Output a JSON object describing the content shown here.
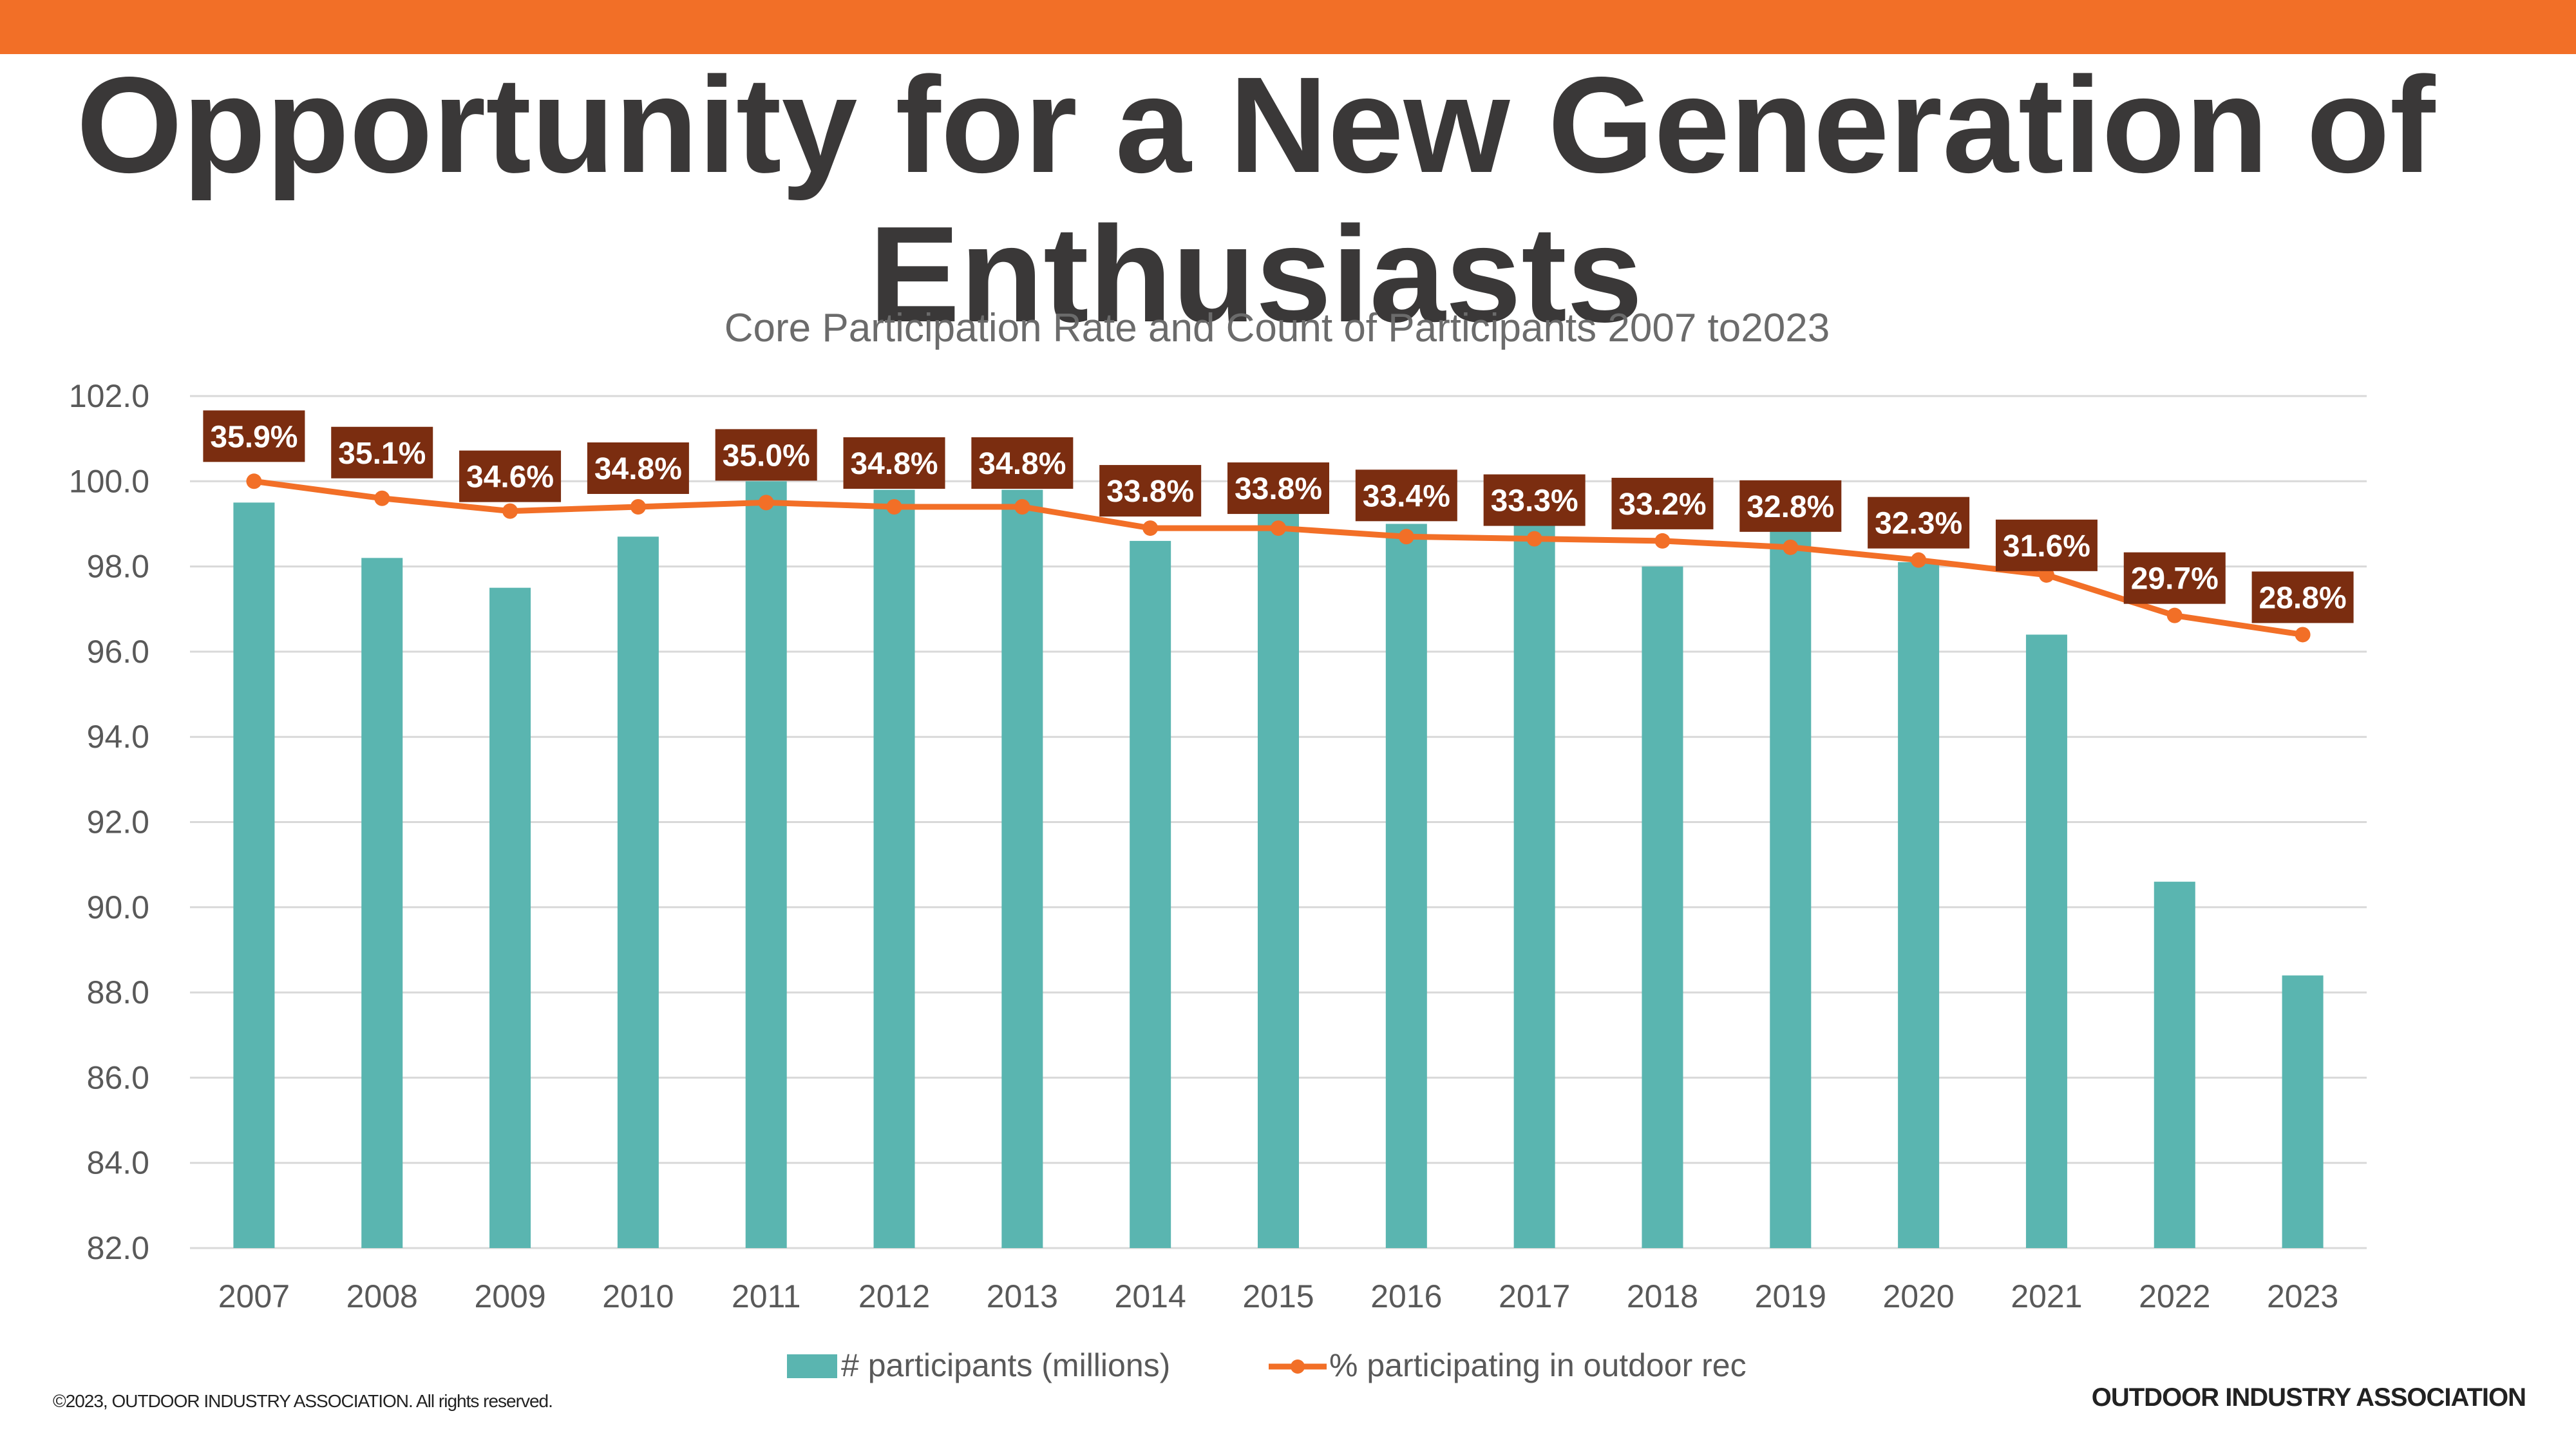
{
  "slide": {
    "title": "Opportunity for a New Generation of Enthusiasts",
    "copyright": "©2023, OUTDOOR INDUSTRY ASSOCIATION. All rights reserved.",
    "brand": "OUTDOOR INDUSTRY ASSOCIATION",
    "accent_color": "#f26f27"
  },
  "chart_data": {
    "type": "bar",
    "title": "Core Participation  Rate and Count of Participants 2007 to2023",
    "xlabel": "",
    "ylabel": "",
    "ylim": [
      82.0,
      102.0
    ],
    "y_ticks": [
      "82.0",
      "84.0",
      "86.0",
      "88.0",
      "90.0",
      "92.0",
      "94.0",
      "96.0",
      "98.0",
      "100.0",
      "102.0"
    ],
    "grid": true,
    "legend_position": "bottom",
    "categories": [
      "2007",
      "2008",
      "2009",
      "2010",
      "2011",
      "2012",
      "2013",
      "2014",
      "2015",
      "2016",
      "2017",
      "2018",
      "2019",
      "2020",
      "2021",
      "2022",
      "2023"
    ],
    "series": [
      {
        "name": "# participants (millions)",
        "type": "bar",
        "color": "#5ab5b0",
        "values": [
          99.5,
          98.2,
          97.5,
          98.7,
          100.0,
          99.8,
          99.8,
          98.6,
          99.3,
          99.0,
          99.0,
          98.0,
          98.9,
          98.1,
          96.4,
          90.6,
          88.4
        ]
      },
      {
        "name": "% participating in outdoor rec",
        "type": "line",
        "color": "#f26f27",
        "values": [
          35.9,
          35.1,
          34.6,
          34.8,
          35.0,
          34.8,
          34.8,
          33.8,
          33.8,
          33.4,
          33.3,
          33.2,
          32.8,
          32.3,
          31.6,
          29.7,
          28.8
        ],
        "data_labels": [
          "35.9%",
          "35.1%",
          "34.6%",
          "34.8%",
          "35.0%",
          "34.8%",
          "34.8%",
          "33.8%",
          "33.8%",
          "33.4%",
          "33.3%",
          "33.2%",
          "32.8%",
          "32.3%",
          "31.6%",
          "29.7%",
          "28.8%"
        ],
        "label_color": "#7b2d10",
        "plotted_on_left_axis": [
          100.0,
          99.6,
          99.3,
          99.4,
          99.5,
          99.4,
          99.4,
          98.9,
          98.9,
          98.7,
          98.65,
          98.6,
          98.45,
          98.15,
          97.8,
          96.85,
          96.4
        ]
      }
    ]
  }
}
